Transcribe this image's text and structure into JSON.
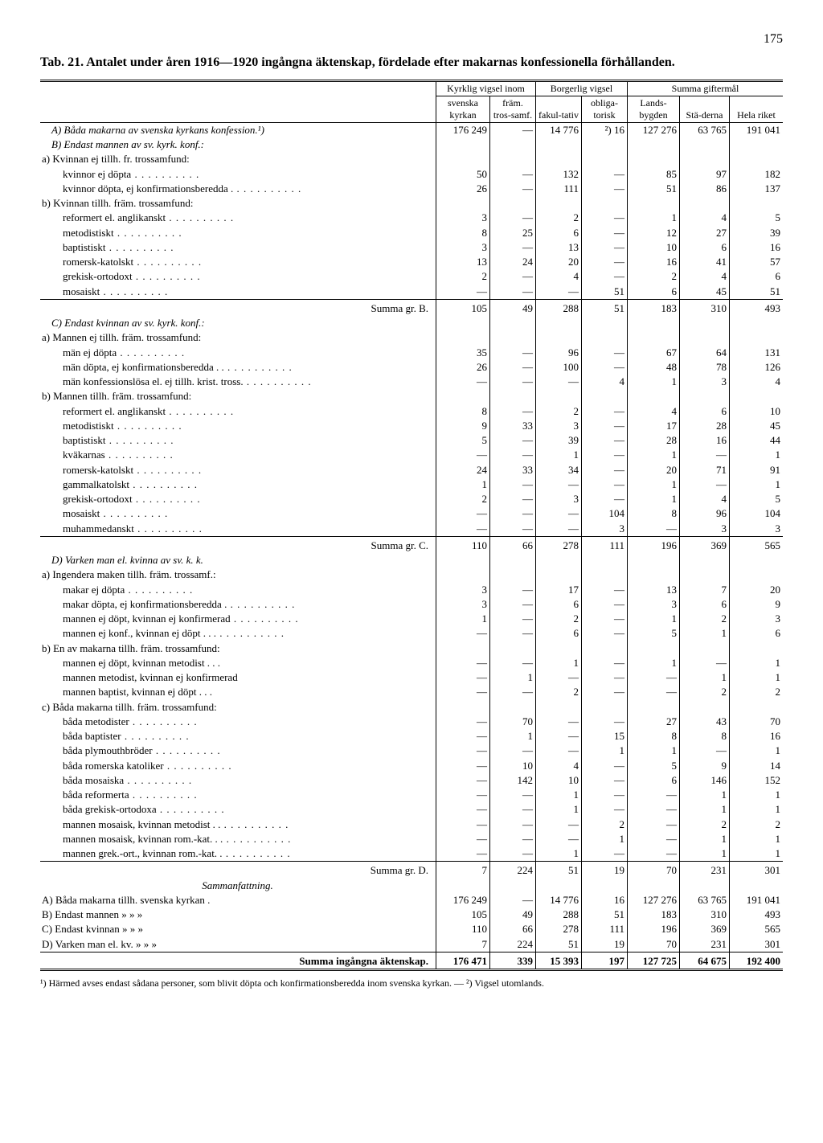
{
  "page_number": "175",
  "title": "Tab. 21. Antalet under åren 1916—1920 ingångna äktenskap, fördelade efter makarnas konfessionella förhållanden.",
  "header": {
    "kyrklig": "Kyrklig vigsel inom",
    "borgerlig": "Borgerlig vigsel",
    "summa": "Summa giftermål",
    "svenska": "svenska kyrkan",
    "fram": "främ. tros-samf.",
    "fakul": "fakul-tativ",
    "obliga": "obliga-torisk",
    "lands": "Lands-bygden",
    "stad": "Stä-derna",
    "hela": "Hela riket"
  },
  "sectA": {
    "label": "A) Båda makarna av svenska kyrkans konfession.¹)",
    "row": [
      "176 249",
      "—",
      "14 776",
      "²) 16",
      "127 276",
      "63 765",
      "191 041"
    ]
  },
  "sectB": {
    "label": "B) Endast mannen av sv. kyrk. konf.:",
    "a_label": "a) Kvinnan ej tillh. fr. trossamfund:",
    "rows_a": [
      {
        "l": "kvinnor ej döpta",
        "v": [
          "50",
          "—",
          "132",
          "—",
          "85",
          "97",
          "182"
        ]
      },
      {
        "l": "kvinnor döpta, ej konfirmationsberedda .",
        "v": [
          "26",
          "—",
          "111",
          "—",
          "51",
          "86",
          "137"
        ]
      }
    ],
    "b_label": "b) Kvinnan tillh. främ. trossamfund:",
    "rows_b": [
      {
        "l": "reformert el. anglikanskt",
        "v": [
          "3",
          "—",
          "2",
          "—",
          "1",
          "4",
          "5"
        ]
      },
      {
        "l": "metodistiskt",
        "v": [
          "8",
          "25",
          "6",
          "—",
          "12",
          "27",
          "39"
        ]
      },
      {
        "l": "baptistiskt",
        "v": [
          "3",
          "—",
          "13",
          "—",
          "10",
          "6",
          "16"
        ]
      },
      {
        "l": "romersk-katolskt",
        "v": [
          "13",
          "24",
          "20",
          "—",
          "16",
          "41",
          "57"
        ]
      },
      {
        "l": "grekisk-ortodoxt",
        "v": [
          "2",
          "—",
          "4",
          "—",
          "2",
          "4",
          "6"
        ]
      },
      {
        "l": "mosaiskt",
        "v": [
          "—",
          "—",
          "—",
          "51",
          "6",
          "45",
          "51"
        ]
      }
    ],
    "sum": {
      "l": "Summa gr. B.",
      "v": [
        "105",
        "49",
        "288",
        "51",
        "183",
        "310",
        "493"
      ]
    }
  },
  "sectC": {
    "label": "C) Endast kvinnan av sv. kyrk. konf.:",
    "a_label": "a) Mannen ej tillh. främ. trossamfund:",
    "rows_a": [
      {
        "l": "män ej döpta",
        "v": [
          "35",
          "—",
          "96",
          "—",
          "67",
          "64",
          "131"
        ]
      },
      {
        "l": "män döpta, ej konfirmationsberedda . .",
        "v": [
          "26",
          "—",
          "100",
          "—",
          "48",
          "78",
          "126"
        ]
      },
      {
        "l": "män konfessionslösa el. ej tillh. krist. tross.",
        "v": [
          "—",
          "—",
          "—",
          "4",
          "1",
          "3",
          "4"
        ]
      }
    ],
    "b_label": "b) Mannen tillh. främ. trossamfund:",
    "rows_b": [
      {
        "l": "reformert el. anglikanskt",
        "v": [
          "8",
          "—",
          "2",
          "—",
          "4",
          "6",
          "10"
        ]
      },
      {
        "l": "metodistiskt",
        "v": [
          "9",
          "33",
          "3",
          "—",
          "17",
          "28",
          "45"
        ]
      },
      {
        "l": "baptistiskt",
        "v": [
          "5",
          "—",
          "39",
          "—",
          "28",
          "16",
          "44"
        ]
      },
      {
        "l": "kväkarnas",
        "v": [
          "—",
          "—",
          "1",
          "—",
          "1",
          "—",
          "1"
        ]
      },
      {
        "l": "romersk-katolskt",
        "v": [
          "24",
          "33",
          "34",
          "—",
          "20",
          "71",
          "91"
        ]
      },
      {
        "l": "gammalkatolskt",
        "v": [
          "1",
          "—",
          "—",
          "—",
          "1",
          "—",
          "1"
        ]
      },
      {
        "l": "grekisk-ortodoxt",
        "v": [
          "2",
          "—",
          "3",
          "—",
          "1",
          "4",
          "5"
        ]
      },
      {
        "l": "mosaiskt",
        "v": [
          "—",
          "—",
          "—",
          "104",
          "8",
          "96",
          "104"
        ]
      },
      {
        "l": "muhammedanskt",
        "v": [
          "—",
          "—",
          "—",
          "3",
          "—",
          "3",
          "3"
        ]
      }
    ],
    "sum": {
      "l": "Summa gr. C.",
      "v": [
        "110",
        "66",
        "278",
        "111",
        "196",
        "369",
        "565"
      ]
    }
  },
  "sectD": {
    "label": "D) Varken man el. kvinna av sv. k. k.",
    "a_label": "a) Ingendera maken tillh. främ. trossamf.:",
    "rows_a": [
      {
        "l": "makar ej döpta",
        "v": [
          "3",
          "—",
          "17",
          "—",
          "13",
          "7",
          "20"
        ]
      },
      {
        "l": "makar döpta, ej konfirmationsberedda .",
        "v": [
          "3",
          "—",
          "6",
          "—",
          "3",
          "6",
          "9"
        ]
      },
      {
        "l": "mannen ej döpt, kvinnan ej konfirmerad",
        "v": [
          "1",
          "—",
          "2",
          "—",
          "1",
          "2",
          "3"
        ]
      },
      {
        "l": "mannen ej konf., kvinnan ej döpt . . .",
        "v": [
          "—",
          "—",
          "6",
          "—",
          "5",
          "1",
          "6"
        ]
      }
    ],
    "b_label": "b) En av makarna tillh. främ. trossamfund:",
    "rows_b": [
      {
        "l": "mannen ej döpt, kvinnan metodist . . .",
        "v": [
          "—",
          "—",
          "1",
          "—",
          "1",
          "—",
          "1"
        ]
      },
      {
        "l": "mannen metodist, kvinnan ej konfirmerad",
        "v": [
          "—",
          "1",
          "—",
          "—",
          "—",
          "1",
          "1"
        ]
      },
      {
        "l": "mannen baptist, kvinnan ej döpt   . . .",
        "v": [
          "—",
          "—",
          "2",
          "—",
          "—",
          "2",
          "2"
        ]
      }
    ],
    "c_label": "c) Båda makarna tillh. främ. trossamfund:",
    "rows_c": [
      {
        "l": "båda metodister",
        "v": [
          "—",
          "70",
          "—",
          "—",
          "27",
          "43",
          "70"
        ]
      },
      {
        "l": "båda baptister",
        "v": [
          "—",
          "1",
          "—",
          "15",
          "8",
          "8",
          "16"
        ]
      },
      {
        "l": "båda plymouthbröder",
        "v": [
          "—",
          "—",
          "—",
          "1",
          "1",
          "—",
          "1"
        ]
      },
      {
        "l": "båda romerska katoliker",
        "v": [
          "—",
          "10",
          "4",
          "—",
          "5",
          "9",
          "14"
        ]
      },
      {
        "l": "båda mosaiska",
        "v": [
          "—",
          "142",
          "10",
          "—",
          "6",
          "146",
          "152"
        ]
      },
      {
        "l": "båda reformerta",
        "v": [
          "—",
          "—",
          "1",
          "—",
          "—",
          "1",
          "1"
        ]
      },
      {
        "l": "båda grekisk-ortodoxa",
        "v": [
          "—",
          "—",
          "1",
          "—",
          "—",
          "1",
          "1"
        ]
      },
      {
        "l": "mannen mosaisk, kvinnan metodist  . .",
        "v": [
          "—",
          "—",
          "—",
          "2",
          "—",
          "2",
          "2"
        ]
      },
      {
        "l": "mannen mosaisk, kvinnan rom.-kat. . .",
        "v": [
          "—",
          "—",
          "—",
          "1",
          "—",
          "1",
          "1"
        ]
      },
      {
        "l": "mannen grek.-ort., kvinnan rom.-kat.  .",
        "v": [
          "—",
          "—",
          "1",
          "—",
          "—",
          "1",
          "1"
        ]
      }
    ],
    "sum": {
      "l": "Summa gr. D.",
      "v": [
        "7",
        "224",
        "51",
        "19",
        "70",
        "231",
        "301"
      ]
    }
  },
  "sammanf": {
    "label": "Sammanfattning.",
    "rows": [
      {
        "l": "A) Båda makarna     tillh. svenska kyrkan .",
        "v": [
          "176 249",
          "—",
          "14 776",
          "16",
          "127 276",
          "63 765",
          "191 041"
        ]
      },
      {
        "l": "B) Endast mannen      »        »          »",
        "v": [
          "105",
          "49",
          "288",
          "51",
          "183",
          "310",
          "493"
        ]
      },
      {
        "l": "C) Endast kvinnan     »        »          »",
        "v": [
          "110",
          "66",
          "278",
          "111",
          "196",
          "369",
          "565"
        ]
      },
      {
        "l": "D) Varken man el. kv. »        »          »",
        "v": [
          "7",
          "224",
          "51",
          "19",
          "70",
          "231",
          "301"
        ]
      }
    ],
    "total": {
      "l": "Summa ingångna äktenskap.",
      "v": [
        "176 471",
        "339",
        "15 393",
        "197",
        "127 725",
        "64 675",
        "192 400"
      ]
    }
  },
  "footnote": "¹) Härmed avses endast sådana personer, som blivit döpta och konfirmationsberedda inom svenska kyrkan. — ²) Vigsel utomlands."
}
